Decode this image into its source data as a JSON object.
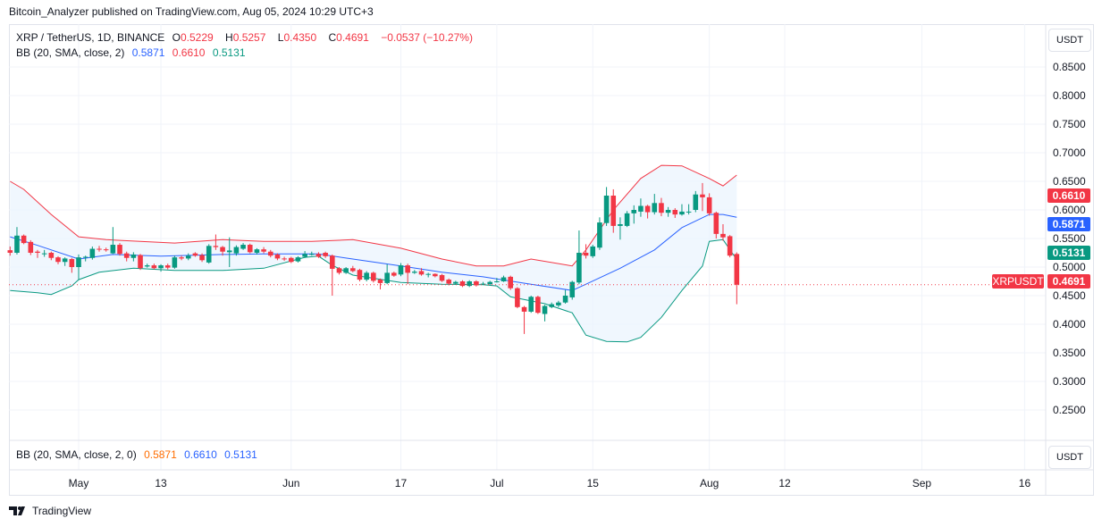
{
  "publisher_line": "Bitcoin_Analyzer published on TradingView.com, Aug 05, 2024 10:29 UTC+3",
  "legend": {
    "symbol": "XRP / TetherUS, 1D, BINANCE",
    "o_label": "O",
    "o": "0.5229",
    "h_label": "H",
    "h": "0.5257",
    "l_label": "L",
    "l": "0.4350",
    "c_label": "C",
    "c": "0.4691",
    "change": "−0.0537 (−10.27%)",
    "bb_label": "BB (20, SMA, close, 2)",
    "bb_basis": "0.5871",
    "bb_upper": "0.6610",
    "bb_lower": "0.5131"
  },
  "lower_pane": {
    "bb_label": "BB (20, SMA, close, 2, 0)",
    "bb_basis": "0.5871",
    "bb_upper": "0.6610",
    "bb_lower": "0.5131"
  },
  "currency_button": "USDT",
  "price_badges": {
    "upper": "0.6610",
    "basis": "0.5871",
    "lower": "0.5131",
    "last": "0.4691",
    "symbol": "XRPUSDT"
  },
  "footer_brand": "TradingView",
  "colors": {
    "up": "#089981",
    "down": "#F23645",
    "basis": "#2962FF",
    "upper": "#F23645",
    "lower": "#089981",
    "band_fill": "#eaf3fd"
  },
  "chart_data": {
    "type": "candlestick",
    "y_ticks": [
      "0.8500",
      "0.8000",
      "0.7500",
      "0.7000",
      "0.6500",
      "0.6000",
      "0.5500",
      "0.5000",
      "0.4500",
      "0.4000",
      "0.3500",
      "0.3000",
      "0.2500"
    ],
    "ylim": [
      0.2,
      0.9
    ],
    "x_ticks": [
      {
        "label": "May",
        "date": "2024-05-01"
      },
      {
        "label": "13",
        "date": "2024-05-13"
      },
      {
        "label": "Jun",
        "date": "2024-06-01"
      },
      {
        "label": "17",
        "date": "2024-06-17"
      },
      {
        "label": "Jul",
        "date": "2024-07-01"
      },
      {
        "label": "15",
        "date": "2024-07-15"
      },
      {
        "label": "Aug",
        "date": "2024-08-01"
      },
      {
        "label": "12",
        "date": "2024-08-12"
      },
      {
        "label": "Sep",
        "date": "2024-09-01"
      },
      {
        "label": "16",
        "date": "2024-09-16"
      }
    ],
    "last_price": 0.4691,
    "candles_columns": [
      "date",
      "open",
      "high",
      "low",
      "close"
    ],
    "candles": [
      [
        "2024-04-21",
        0.5295,
        0.536,
        0.52,
        0.525
      ],
      [
        "2024-04-22",
        0.525,
        0.57,
        0.522,
        0.555
      ],
      [
        "2024-04-23",
        0.555,
        0.557,
        0.54,
        0.542
      ],
      [
        "2024-04-24",
        0.544,
        0.547,
        0.521,
        0.525
      ],
      [
        "2024-04-25",
        0.527,
        0.53,
        0.516,
        0.525
      ],
      [
        "2024-04-26",
        0.524,
        0.53,
        0.518,
        0.524
      ],
      [
        "2024-04-27",
        0.525,
        0.527,
        0.512,
        0.516
      ],
      [
        "2024-04-28",
        0.517,
        0.519,
        0.505,
        0.509
      ],
      [
        "2024-04-29",
        0.509,
        0.517,
        0.502,
        0.515
      ],
      [
        "2024-04-30",
        0.514,
        0.516,
        0.49,
        0.5
      ],
      [
        "2024-05-01",
        0.5,
        0.522,
        0.478,
        0.517
      ],
      [
        "2024-05-02",
        0.517,
        0.52,
        0.51,
        0.518
      ],
      [
        "2024-05-03",
        0.516,
        0.536,
        0.513,
        0.532
      ],
      [
        "2024-05-04",
        0.532,
        0.537,
        0.527,
        0.531
      ],
      [
        "2024-05-05",
        0.531,
        0.534,
        0.527,
        0.53
      ],
      [
        "2024-05-06",
        0.524,
        0.57,
        0.523,
        0.539
      ],
      [
        "2024-05-07",
        0.539,
        0.542,
        0.52,
        0.523
      ],
      [
        "2024-05-08",
        0.524,
        0.527,
        0.51,
        0.516
      ],
      [
        "2024-05-09",
        0.516,
        0.526,
        0.51,
        0.522
      ],
      [
        "2024-05-10",
        0.521,
        0.523,
        0.495,
        0.498
      ],
      [
        "2024-05-11",
        0.501,
        0.506,
        0.499,
        0.503
      ],
      [
        "2024-05-12",
        0.503,
        0.506,
        0.496,
        0.498
      ],
      [
        "2024-05-13",
        0.498,
        0.505,
        0.492,
        0.503
      ],
      [
        "2024-05-14",
        0.503,
        0.506,
        0.496,
        0.499
      ],
      [
        "2024-05-15",
        0.499,
        0.52,
        0.497,
        0.517
      ],
      [
        "2024-05-16",
        0.517,
        0.52,
        0.512,
        0.515
      ],
      [
        "2024-05-17",
        0.515,
        0.524,
        0.512,
        0.52
      ],
      [
        "2024-05-18",
        0.524,
        0.526,
        0.518,
        0.52
      ],
      [
        "2024-05-19",
        0.521,
        0.524,
        0.509,
        0.512
      ],
      [
        "2024-05-20",
        0.508,
        0.54,
        0.506,
        0.537
      ],
      [
        "2024-05-21",
        0.537,
        0.557,
        0.53,
        0.535
      ],
      [
        "2024-05-22",
        0.535,
        0.537,
        0.52,
        0.527
      ],
      [
        "2024-05-23",
        0.526,
        0.552,
        0.5,
        0.529
      ],
      [
        "2024-05-24",
        0.524,
        0.538,
        0.52,
        0.535
      ],
      [
        "2024-05-25",
        0.532,
        0.542,
        0.53,
        0.539
      ],
      [
        "2024-05-26",
        0.539,
        0.541,
        0.524,
        0.526
      ],
      [
        "2024-05-27",
        0.525,
        0.533,
        0.522,
        0.531
      ],
      [
        "2024-05-28",
        0.531,
        0.535,
        0.524,
        0.527
      ],
      [
        "2024-05-29",
        0.527,
        0.53,
        0.517,
        0.52
      ],
      [
        "2024-05-30",
        0.522,
        0.524,
        0.512,
        0.515
      ],
      [
        "2024-05-31",
        0.515,
        0.518,
        0.511,
        0.514
      ],
      [
        "2024-06-01",
        0.516,
        0.518,
        0.507,
        0.509
      ],
      [
        "2024-06-02",
        0.51,
        0.519,
        0.508,
        0.517
      ],
      [
        "2024-06-03",
        0.518,
        0.528,
        0.516,
        0.523
      ],
      [
        "2024-06-04",
        0.523,
        0.527,
        0.52,
        0.523
      ],
      [
        "2024-06-05",
        0.523,
        0.526,
        0.516,
        0.518
      ],
      [
        "2024-06-06",
        0.525,
        0.527,
        0.516,
        0.519
      ],
      [
        "2024-06-07",
        0.52,
        0.522,
        0.45,
        0.497
      ],
      [
        "2024-06-08",
        0.498,
        0.5,
        0.487,
        0.49
      ],
      [
        "2024-06-09",
        0.49,
        0.5,
        0.488,
        0.498
      ],
      [
        "2024-06-10",
        0.498,
        0.502,
        0.491,
        0.493
      ],
      [
        "2024-06-11",
        0.495,
        0.497,
        0.475,
        0.478
      ],
      [
        "2024-06-12",
        0.478,
        0.493,
        0.475,
        0.49
      ],
      [
        "2024-06-13",
        0.49,
        0.492,
        0.473,
        0.476
      ],
      [
        "2024-06-14",
        0.478,
        0.48,
        0.461,
        0.472
      ],
      [
        "2024-06-15",
        0.472,
        0.505,
        0.47,
        0.49
      ],
      [
        "2024-06-16",
        0.49,
        0.492,
        0.483,
        0.485
      ],
      [
        "2024-06-17",
        0.487,
        0.507,
        0.484,
        0.503
      ],
      [
        "2024-06-18",
        0.503,
        0.506,
        0.47,
        0.49
      ],
      [
        "2024-06-19",
        0.49,
        0.495,
        0.488,
        0.492
      ],
      [
        "2024-06-20",
        0.493,
        0.498,
        0.485,
        0.487
      ],
      [
        "2024-06-21",
        0.487,
        0.49,
        0.482,
        0.488
      ],
      [
        "2024-06-22",
        0.488,
        0.489,
        0.482,
        0.484
      ],
      [
        "2024-06-23",
        0.486,
        0.488,
        0.474,
        0.476
      ],
      [
        "2024-06-24",
        0.478,
        0.48,
        0.468,
        0.471
      ],
      [
        "2024-06-25",
        0.471,
        0.476,
        0.469,
        0.474
      ],
      [
        "2024-06-26",
        0.475,
        0.477,
        0.465,
        0.467
      ],
      [
        "2024-06-27",
        0.467,
        0.477,
        0.465,
        0.475
      ],
      [
        "2024-06-28",
        0.475,
        0.477,
        0.466,
        0.468
      ],
      [
        "2024-06-29",
        0.47,
        0.474,
        0.469,
        0.471
      ],
      [
        "2024-06-30",
        0.47,
        0.476,
        0.469,
        0.474
      ],
      [
        "2024-07-01",
        0.474,
        0.481,
        0.473,
        0.475
      ],
      [
        "2024-07-02",
        0.475,
        0.485,
        0.474,
        0.482
      ],
      [
        "2024-07-03",
        0.483,
        0.485,
        0.46,
        0.463
      ],
      [
        "2024-07-04",
        0.463,
        0.465,
        0.428,
        0.43
      ],
      [
        "2024-07-05",
        0.43,
        0.432,
        0.383,
        0.422
      ],
      [
        "2024-07-06",
        0.422,
        0.45,
        0.42,
        0.448
      ],
      [
        "2024-07-07",
        0.448,
        0.45,
        0.418,
        0.42
      ],
      [
        "2024-07-08",
        0.418,
        0.434,
        0.405,
        0.432
      ],
      [
        "2024-07-09",
        0.43,
        0.438,
        0.428,
        0.435
      ],
      [
        "2024-07-10",
        0.433,
        0.441,
        0.43,
        0.438
      ],
      [
        "2024-07-11",
        0.438,
        0.46,
        0.436,
        0.45
      ],
      [
        "2024-07-12",
        0.447,
        0.476,
        0.443,
        0.474
      ],
      [
        "2024-07-13",
        0.473,
        0.564,
        0.47,
        0.525
      ],
      [
        "2024-07-14",
        0.525,
        0.54,
        0.515,
        0.52
      ],
      [
        "2024-07-15",
        0.519,
        0.539,
        0.516,
        0.536
      ],
      [
        "2024-07-16",
        0.534,
        0.587,
        0.53,
        0.578
      ],
      [
        "2024-07-17",
        0.577,
        0.64,
        0.572,
        0.625
      ],
      [
        "2024-07-18",
        0.625,
        0.636,
        0.56,
        0.572
      ],
      [
        "2024-07-19",
        0.572,
        0.587,
        0.548,
        0.575
      ],
      [
        "2024-07-20",
        0.572,
        0.598,
        0.57,
        0.594
      ],
      [
        "2024-07-21",
        0.594,
        0.608,
        0.576,
        0.6
      ],
      [
        "2024-07-22",
        0.597,
        0.62,
        0.588,
        0.607
      ],
      [
        "2024-07-23",
        0.607,
        0.609,
        0.585,
        0.596
      ],
      [
        "2024-07-24",
        0.596,
        0.628,
        0.592,
        0.612
      ],
      [
        "2024-07-25",
        0.612,
        0.621,
        0.589,
        0.595
      ],
      [
        "2024-07-26",
        0.595,
        0.605,
        0.588,
        0.6
      ],
      [
        "2024-07-27",
        0.6,
        0.603,
        0.586,
        0.592
      ],
      [
        "2024-07-28",
        0.592,
        0.61,
        0.59,
        0.597
      ],
      [
        "2024-07-29",
        0.597,
        0.61,
        0.592,
        0.597
      ],
      [
        "2024-07-30",
        0.6,
        0.633,
        0.596,
        0.627
      ],
      [
        "2024-07-31",
        0.627,
        0.647,
        0.598,
        0.622
      ],
      [
        "2024-08-01",
        0.622,
        0.629,
        0.59,
        0.594
      ],
      [
        "2024-08-02",
        0.595,
        0.597,
        0.55,
        0.558
      ],
      [
        "2024-08-03",
        0.558,
        0.575,
        0.546,
        0.552
      ],
      [
        "2024-08-04",
        0.554,
        0.556,
        0.517,
        0.52
      ],
      [
        "2024-08-05",
        0.5229,
        0.5257,
        0.435,
        0.4691
      ]
    ],
    "bb_upper": [
      [
        "2024-04-21",
        0.65
      ],
      [
        "2024-04-23",
        0.636
      ],
      [
        "2024-04-27",
        0.592
      ],
      [
        "2024-05-01",
        0.553
      ],
      [
        "2024-05-05",
        0.548
      ],
      [
        "2024-05-10",
        0.545
      ],
      [
        "2024-05-15",
        0.542
      ],
      [
        "2024-05-22",
        0.548
      ],
      [
        "2024-05-28",
        0.545
      ],
      [
        "2024-06-04",
        0.545
      ],
      [
        "2024-06-10",
        0.548
      ],
      [
        "2024-06-17",
        0.533
      ],
      [
        "2024-06-23",
        0.514
      ],
      [
        "2024-06-28",
        0.502
      ],
      [
        "2024-07-02",
        0.502
      ],
      [
        "2024-07-06",
        0.514
      ],
      [
        "2024-07-12",
        0.502
      ],
      [
        "2024-07-14",
        0.53
      ],
      [
        "2024-07-18",
        0.6
      ],
      [
        "2024-07-22",
        0.655
      ],
      [
        "2024-07-25",
        0.678
      ],
      [
        "2024-07-28",
        0.677
      ],
      [
        "2024-08-01",
        0.655
      ],
      [
        "2024-08-03",
        0.642
      ],
      [
        "2024-08-05",
        0.661
      ]
    ],
    "bb_basis": [
      [
        "2024-04-21",
        0.553
      ],
      [
        "2024-04-25",
        0.538
      ],
      [
        "2024-05-01",
        0.514
      ],
      [
        "2024-05-06",
        0.522
      ],
      [
        "2024-05-13",
        0.519
      ],
      [
        "2024-05-22",
        0.522
      ],
      [
        "2024-05-28",
        0.523
      ],
      [
        "2024-06-05",
        0.523
      ],
      [
        "2024-06-10",
        0.514
      ],
      [
        "2024-06-17",
        0.502
      ],
      [
        "2024-06-23",
        0.491
      ],
      [
        "2024-06-29",
        0.483
      ],
      [
        "2024-07-06",
        0.47
      ],
      [
        "2024-07-12",
        0.459
      ],
      [
        "2024-07-14",
        0.47
      ],
      [
        "2024-07-19",
        0.498
      ],
      [
        "2024-07-24",
        0.53
      ],
      [
        "2024-07-28",
        0.569
      ],
      [
        "2024-08-01",
        0.592
      ],
      [
        "2024-08-03",
        0.592
      ],
      [
        "2024-08-05",
        0.5871
      ]
    ],
    "bb_lower": [
      [
        "2024-04-21",
        0.459
      ],
      [
        "2024-04-25",
        0.455
      ],
      [
        "2024-04-27",
        0.452
      ],
      [
        "2024-04-30",
        0.467
      ],
      [
        "2024-05-01",
        0.478
      ],
      [
        "2024-05-04",
        0.491
      ],
      [
        "2024-05-09",
        0.498
      ],
      [
        "2024-05-15",
        0.494
      ],
      [
        "2024-05-22",
        0.494
      ],
      [
        "2024-05-28",
        0.498
      ],
      [
        "2024-06-03",
        0.517
      ],
      [
        "2024-06-05",
        0.519
      ],
      [
        "2024-06-07",
        0.503
      ],
      [
        "2024-06-10",
        0.486
      ],
      [
        "2024-06-17",
        0.473
      ],
      [
        "2024-06-23",
        0.47
      ],
      [
        "2024-06-29",
        0.469
      ],
      [
        "2024-07-01",
        0.467
      ],
      [
        "2024-07-03",
        0.448
      ],
      [
        "2024-07-08",
        0.436
      ],
      [
        "2024-07-12",
        0.42
      ],
      [
        "2024-07-14",
        0.381
      ],
      [
        "2024-07-17",
        0.37
      ],
      [
        "2024-07-20",
        0.369
      ],
      [
        "2024-07-22",
        0.377
      ],
      [
        "2024-07-25",
        0.412
      ],
      [
        "2024-07-28",
        0.459
      ],
      [
        "2024-07-31",
        0.502
      ],
      [
        "2024-08-01",
        0.545
      ],
      [
        "2024-08-03",
        0.548
      ],
      [
        "2024-08-05",
        0.5131
      ]
    ]
  }
}
